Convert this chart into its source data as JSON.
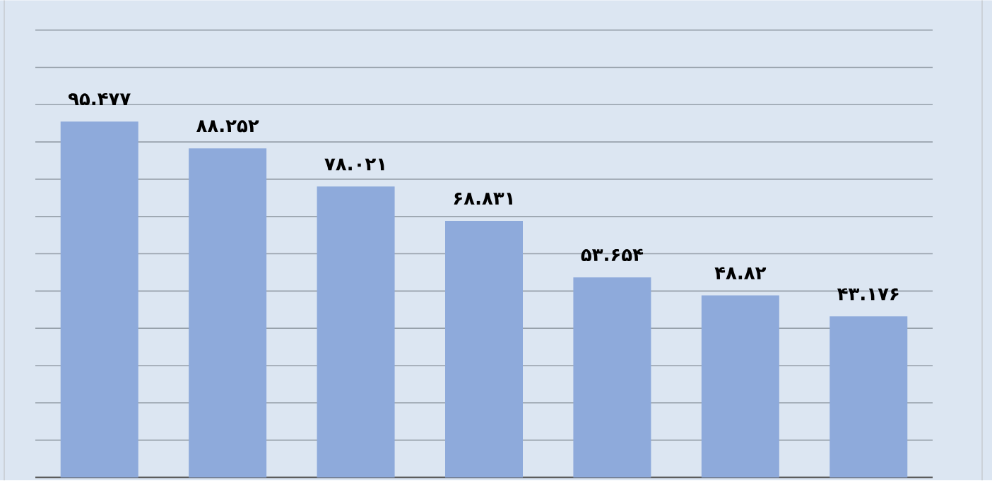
{
  "chart_data": {
    "type": "bar",
    "categories": [
      null,
      null,
      null,
      null,
      null,
      null,
      null
    ],
    "values": [
      95.477,
      88.252,
      78.021,
      68.831,
      53.654,
      48.82,
      43.176
    ],
    "value_labels": [
      "۹۵.۴۷۷",
      "۸۸.۲۵۲",
      "۷۸.۰۲۱",
      "۶۸.۸۳۱",
      "۵۳.۶۵۴",
      "۴۸.۸۲",
      "۴۳.۱۷۶"
    ],
    "color": "#8eaadb",
    "ylim": [
      0,
      128
    ],
    "grid": "y"
  }
}
